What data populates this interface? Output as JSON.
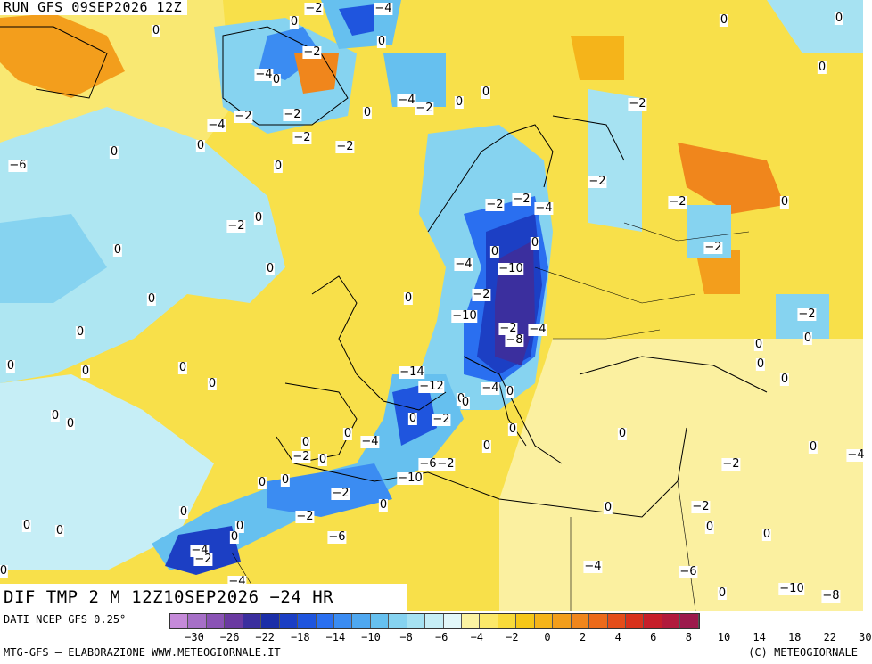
{
  "header": {
    "run_title": "RUN GFS 09SEP2026 12Z"
  },
  "field": {
    "title": "DIF TMP 2 M 12Z10SEP2026 −24 HR"
  },
  "footer": {
    "data_source": "DATI NCEP GFS 0.25°",
    "credit_left": "MTG-GFS — ELABORAZIONE WWW.METEOGIORNALE.IT",
    "credit_right": "(C) METEOGIORNALE"
  },
  "legend": {
    "colors": [
      "#c58ad9",
      "#a66fc7",
      "#8a53b5",
      "#6a3aa1",
      "#3b2f9e",
      "#1c2fa8",
      "#1c3fc4",
      "#1f55de",
      "#2a6ff0",
      "#3b8cf2",
      "#4fa8f0",
      "#66c0ef",
      "#86d3f0",
      "#a6e2f2",
      "#c6eef6",
      "#e2f7f9",
      "#fbf3a2",
      "#fbe86a",
      "#f8da3a",
      "#f6c718",
      "#f5b41a",
      "#f39e1c",
      "#f0861c",
      "#ec6a1a",
      "#e44d1a",
      "#d8311c",
      "#c61e2a",
      "#b11a3c",
      "#9c1a4c"
    ],
    "ticks": [
      "−30",
      "−26",
      "−22",
      "−18",
      "−14",
      "−10",
      "−8",
      "−6",
      "−4",
      "−2",
      "0",
      "2",
      "4",
      "6",
      "8",
      "10",
      "14",
      "18",
      "22",
      "30"
    ]
  },
  "map_labels": [
    "-2",
    "-4",
    "0",
    "0",
    "-2",
    "-4",
    "0",
    "-4",
    "-2",
    "-2",
    "-2",
    "-6",
    "0",
    "-4",
    "-2",
    "0",
    "0",
    "0",
    "0",
    "-2",
    "-2",
    "0",
    "0",
    "0",
    "-2",
    "-2",
    "-2",
    "-2",
    "-2",
    "-2",
    "0",
    "-4",
    "0",
    "0",
    "-10",
    "-4",
    "-10",
    "-2",
    "-2",
    "-8",
    "-4",
    "0",
    "-14",
    "-12",
    "-4",
    "0",
    "0",
    "0",
    "-2",
    "0",
    "0",
    "-4",
    "-6",
    "-10",
    "-2",
    "0",
    "0",
    "0",
    "-2",
    "0",
    "-2",
    "0",
    "0",
    "-4",
    "-2",
    "-4",
    "-6",
    "-2",
    "0",
    "0",
    "-2",
    "-4",
    "0",
    "0",
    "-2",
    "0",
    "0",
    "-4",
    "-6",
    "-10",
    "-8",
    "0",
    "-2",
    "0",
    "0",
    "0",
    "0",
    "0",
    "0",
    "0",
    "0",
    "0",
    "0",
    "0",
    "0",
    "0",
    "0",
    "0",
    "0",
    "0",
    "0",
    "0",
    "0",
    "0",
    "0",
    "0",
    "0"
  ]
}
